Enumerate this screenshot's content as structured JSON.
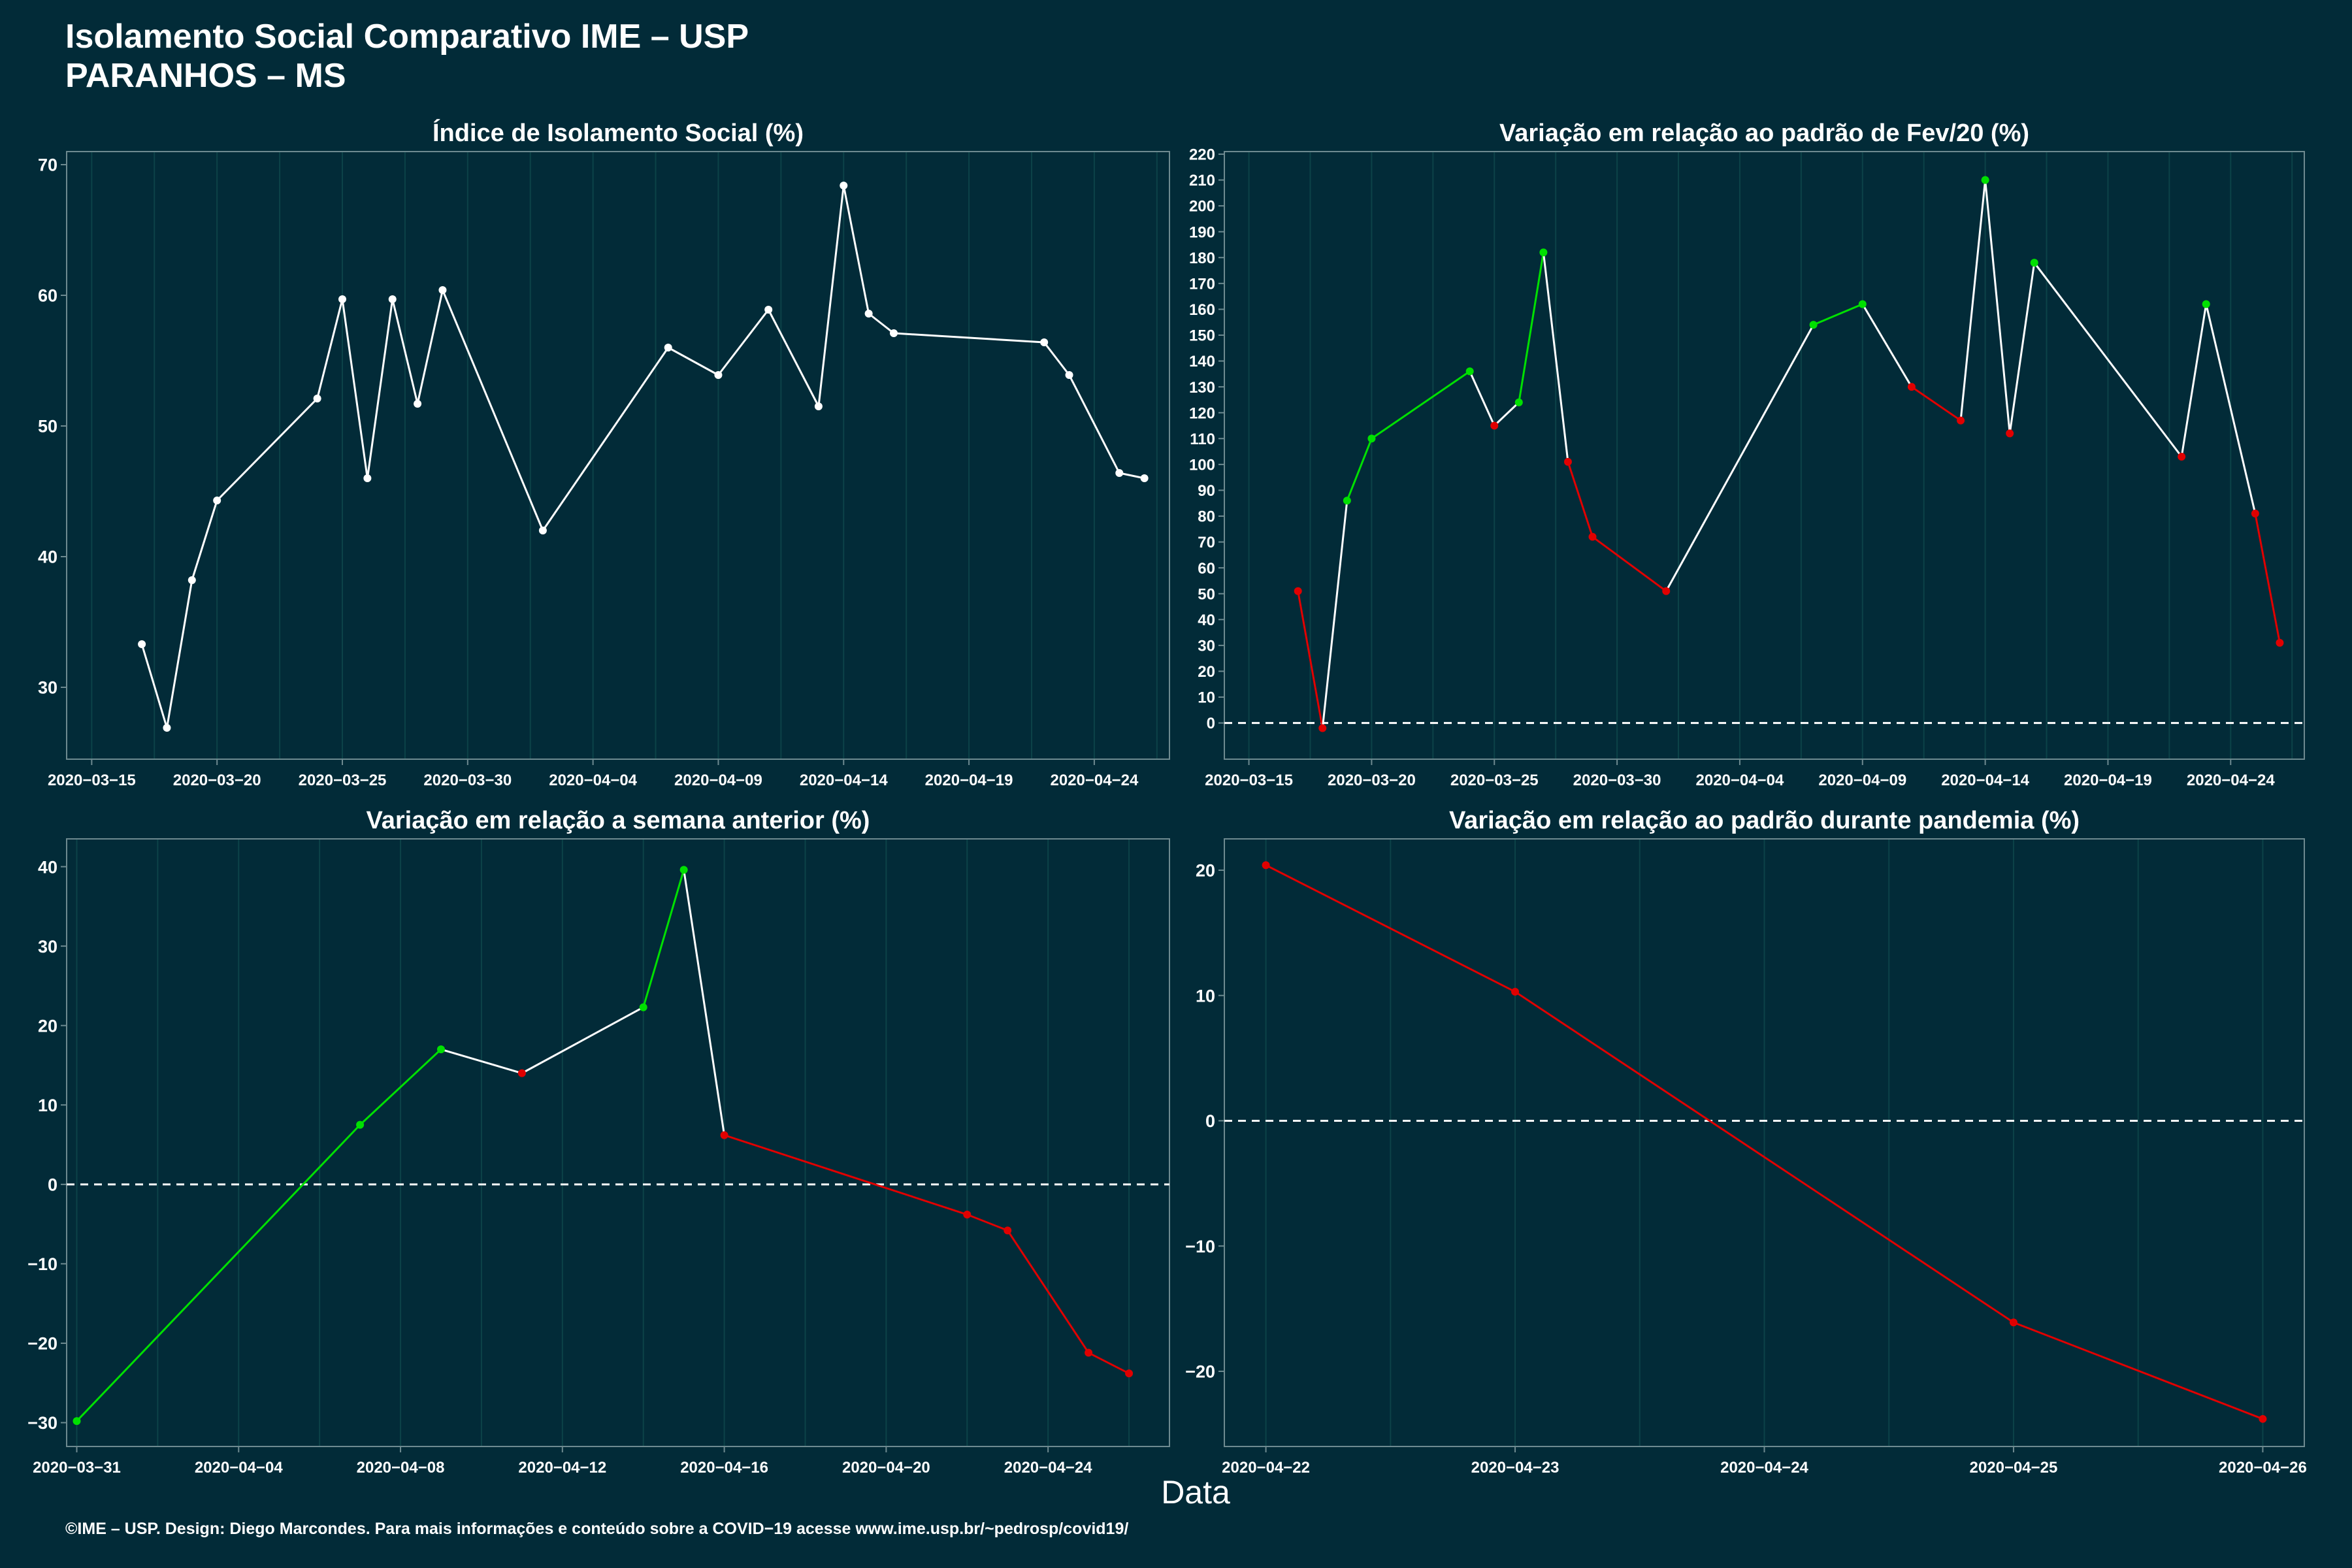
{
  "title": {
    "line1": "Isolamento Social Comparativo IME – USP",
    "line2": "PARANHOS – MS"
  },
  "xlabel": "Data",
  "footer": "©IME – USP. Design: Diego Marcondes. Para mais informações e conteúdo sobre a COVID−19 acesse www.ime.usp.br/~pedrosp/covid19/",
  "colors": {
    "background": "#022b38",
    "panel_border": "#6e8a90",
    "grid": "#0c4248",
    "line_neutral": "#ffffff",
    "line_up": "#00e000",
    "line_down": "#e00000",
    "text": "#ffffff"
  },
  "chart_data": [
    {
      "id": "isolamento",
      "type": "line",
      "title": "Índice de Isolamento Social (%)",
      "xlim": [
        "2020-03-14",
        "2020-04-27"
      ],
      "ylim": [
        24.5,
        71
      ],
      "yticks": [
        30,
        40,
        50,
        60,
        70
      ],
      "xticks": [
        "2020-03-15",
        "2020-03-20",
        "2020-03-25",
        "2020-03-30",
        "2020-04-04",
        "2020-04-09",
        "2020-04-14",
        "2020-04-19",
        "2020-04-24"
      ],
      "zero_line": false,
      "point_color": "white",
      "x": [
        "2020-03-17",
        "2020-03-18",
        "2020-03-19",
        "2020-03-20",
        "2020-03-24",
        "2020-03-25",
        "2020-03-26",
        "2020-03-27",
        "2020-03-28",
        "2020-03-29",
        "2020-04-02",
        "2020-04-07",
        "2020-04-09",
        "2020-04-11",
        "2020-04-13",
        "2020-04-14",
        "2020-04-15",
        "2020-04-16",
        "2020-04-22",
        "2020-04-23",
        "2020-04-25",
        "2020-04-26"
      ],
      "y": [
        33.3,
        26.9,
        38.2,
        44.3,
        52.1,
        59.7,
        46.0,
        59.7,
        51.7,
        60.4,
        42.0,
        56.0,
        53.9,
        58.9,
        51.5,
        68.4,
        58.6,
        57.1,
        56.4,
        53.9,
        46.4,
        46.0
      ]
    },
    {
      "id": "fev20",
      "type": "line",
      "title": "Variação em relação ao padrão de Fev/20 (%)",
      "xlim": [
        "2020-03-14",
        "2020-04-27"
      ],
      "ylim": [
        -14,
        221
      ],
      "yticks": [
        0,
        10,
        20,
        30,
        40,
        50,
        60,
        70,
        80,
        90,
        100,
        110,
        120,
        130,
        140,
        150,
        160,
        170,
        180,
        190,
        200,
        210,
        220
      ],
      "xticks": [
        "2020-03-15",
        "2020-03-20",
        "2020-03-25",
        "2020-03-30",
        "2020-04-04",
        "2020-04-09",
        "2020-04-14",
        "2020-04-19",
        "2020-04-24"
      ],
      "zero_line": true,
      "point_color": "trend",
      "x": [
        "2020-03-17",
        "2020-03-18",
        "2020-03-19",
        "2020-03-20",
        "2020-03-24",
        "2020-03-25",
        "2020-03-26",
        "2020-03-27",
        "2020-03-28",
        "2020-03-29",
        "2020-04-01",
        "2020-04-07",
        "2020-04-09",
        "2020-04-11",
        "2020-04-13",
        "2020-04-14",
        "2020-04-15",
        "2020-04-16",
        "2020-04-22",
        "2020-04-23",
        "2020-04-25",
        "2020-04-26"
      ],
      "y": [
        51,
        -2,
        86,
        110,
        136,
        115,
        124,
        182,
        101,
        72,
        51,
        154,
        162,
        130,
        117,
        210,
        112,
        178,
        103,
        162,
        81,
        31
      ]
    },
    {
      "id": "semana",
      "type": "line",
      "title": "Variação em relação a semana anterior (%)",
      "xlim": [
        "2020-03-30 18:00",
        "2020-04-27"
      ],
      "ylim": [
        -33,
        43.5
      ],
      "yticks": [
        -30,
        -20,
        -10,
        0,
        10,
        20,
        30,
        40
      ],
      "xticks": [
        "2020-03-31",
        "2020-04-04",
        "2020-04-08",
        "2020-04-12",
        "2020-04-16",
        "2020-04-20",
        "2020-04-24"
      ],
      "zero_line": true,
      "point_color": "trend",
      "x": [
        "2020-03-31",
        "2020-04-07",
        "2020-04-09",
        "2020-04-11",
        "2020-04-14",
        "2020-04-15",
        "2020-04-16",
        "2020-04-22",
        "2020-04-23",
        "2020-04-25",
        "2020-04-26"
      ],
      "y": [
        -29.8,
        7.5,
        17.0,
        14.0,
        22.3,
        39.6,
        6.2,
        -3.8,
        -5.8,
        -21.2,
        -23.8
      ]
    },
    {
      "id": "pandemia",
      "type": "line",
      "title": "Variação em relação ao padrão durante pandemia (%)",
      "xlim": [
        "2020-04-21 20:00",
        "2020-04-26 04:00"
      ],
      "ylim": [
        -26,
        22.5
      ],
      "yticks": [
        -20,
        -10,
        0,
        10,
        20
      ],
      "xticks": [
        "2020-04-22",
        "2020-04-23",
        "2020-04-24",
        "2020-04-25",
        "2020-04-26"
      ],
      "zero_line": true,
      "point_color": "trend",
      "x": [
        "2020-04-22",
        "2020-04-23",
        "2020-04-25",
        "2020-04-26"
      ],
      "y": [
        20.4,
        10.3,
        -16.1,
        -23.8
      ]
    }
  ]
}
